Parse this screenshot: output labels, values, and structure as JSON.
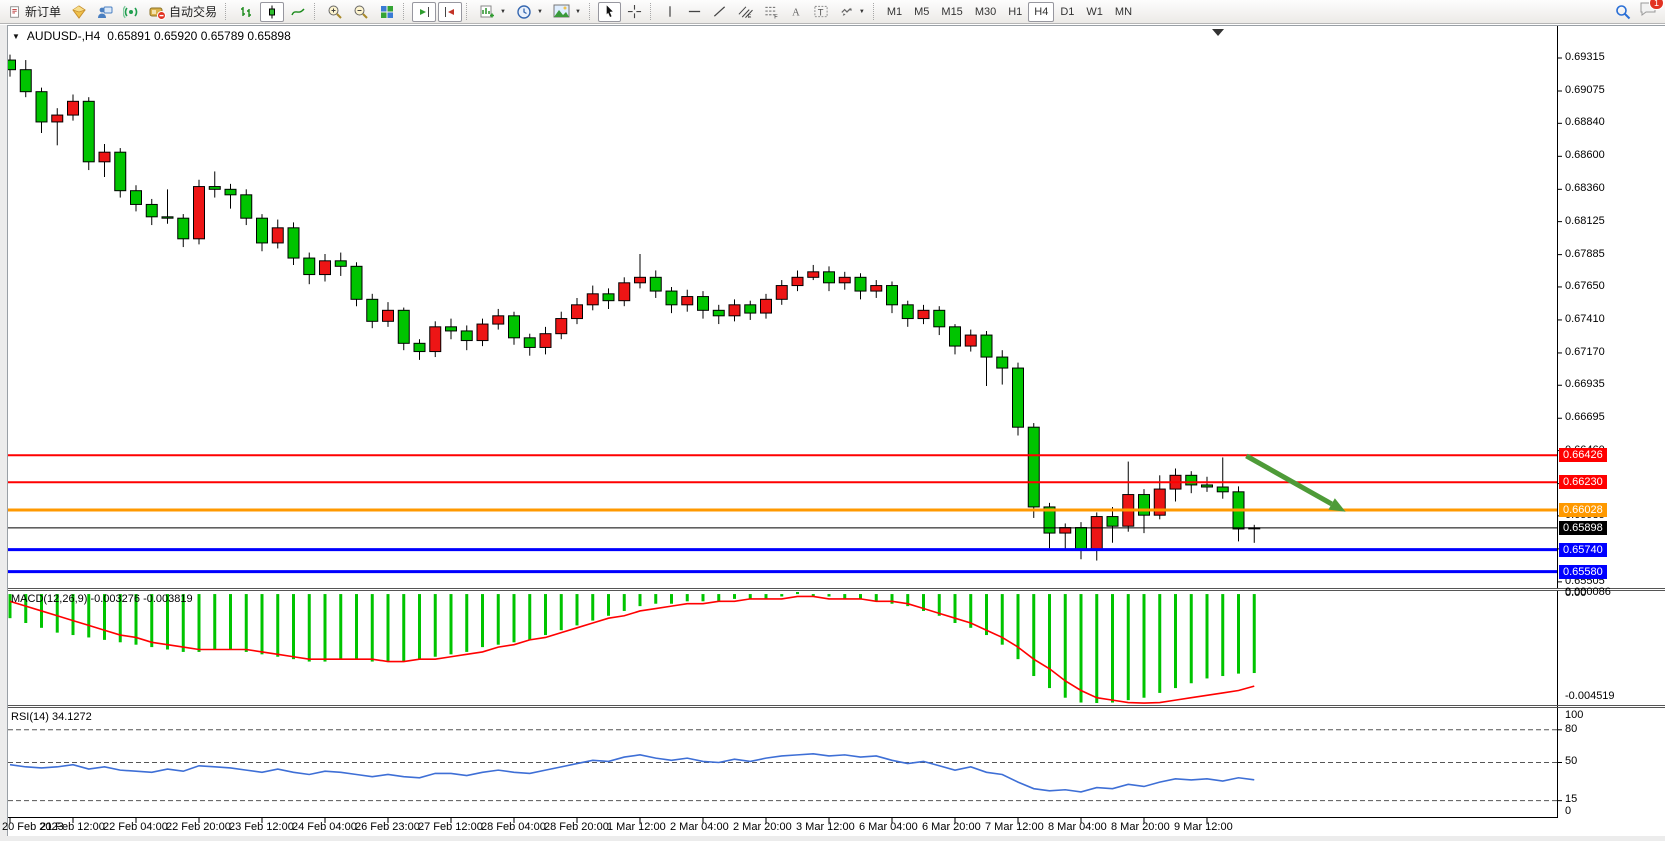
{
  "toolbar": {
    "new_order": "新订单",
    "auto_trading": "自动交易",
    "timeframes": [
      "M1",
      "M5",
      "M15",
      "M30",
      "H1",
      "H4",
      "D1",
      "W1",
      "MN"
    ],
    "active_timeframe": "H4",
    "notification_badge": "1"
  },
  "chart": {
    "symbol_title": "AUDUSD-,H4",
    "ohlc_text": "0.65891 0.65920 0.65789 0.65898",
    "macd_label": "MACD(12,26,9) -0.003276 -0.003819",
    "rsi_label": "RSI(14) 34.1272",
    "macd_scale_top": "0.000086",
    "macd_scale_top_overlap": "0.00",
    "macd_scale_bottom": "-0.004519",
    "rsi_scale": [
      "100",
      "80",
      "50",
      "15",
      "0"
    ]
  },
  "colors": {
    "up_candle": "#ED1515",
    "down_candle": "#00C400",
    "candle_border": "#000000",
    "line_red": "#FF0000",
    "line_orange": "#FF9900",
    "line_blue": "#0000FF",
    "price_line": "#000000",
    "macd_hist": "#00C400",
    "macd_signal": "#FF0000",
    "rsi_line": "#3E6FD6",
    "arrow_green": "#4E9B38",
    "axis_text": "#000000"
  },
  "chart_data": [
    {
      "type": "candlestick",
      "symbol": "AUDUSD-",
      "timeframe": "H4",
      "up_color_meaning": "red = bullish, green = bearish (CN scheme)",
      "ylim": [
        0.65468,
        0.6954
      ],
      "yticks": [
        0.69315,
        0.69075,
        0.6884,
        0.686,
        0.6836,
        0.68125,
        0.67885,
        0.6765,
        0.6741,
        0.6717,
        0.66935,
        0.66695,
        0.6646,
        0.6622,
        0.65985,
        0.65745,
        0.65505
      ],
      "x_labels": [
        "20 Feb 2023",
        "21 Feb 12:00",
        "22 Feb 04:00",
        "22 Feb 20:00",
        "23 Feb 12:00",
        "24 Feb 04:00",
        "26 Feb 23:00",
        "27 Feb 12:00",
        "28 Feb 04:00",
        "28 Feb 20:00",
        "1 Mar 12:00",
        "2 Mar 04:00",
        "2 Mar 20:00",
        "3 Mar 12:00",
        "6 Mar 04:00",
        "6 Mar 20:00",
        "7 Mar 12:00",
        "8 Mar 04:00",
        "8 Mar 20:00",
        "9 Mar 12:00"
      ],
      "bars_per_label": 4,
      "candles": [
        [
          0.693,
          0.6934,
          0.6918,
          0.6923
        ],
        [
          0.6923,
          0.693,
          0.6903,
          0.6907
        ],
        [
          0.6907,
          0.691,
          0.6877,
          0.6885
        ],
        [
          0.6885,
          0.6895,
          0.6868,
          0.689
        ],
        [
          0.689,
          0.6905,
          0.6886,
          0.69
        ],
        [
          0.69,
          0.6903,
          0.685,
          0.6856
        ],
        [
          0.6856,
          0.6869,
          0.6845,
          0.6863
        ],
        [
          0.6863,
          0.6866,
          0.683,
          0.6835
        ],
        [
          0.6835,
          0.6839,
          0.682,
          0.6825
        ],
        [
          0.6825,
          0.6829,
          0.681,
          0.6816
        ],
        [
          0.6816,
          0.6836,
          0.6811,
          0.6815
        ],
        [
          0.6815,
          0.6818,
          0.6794,
          0.68
        ],
        [
          0.68,
          0.6843,
          0.6796,
          0.6838
        ],
        [
          0.6838,
          0.6849,
          0.683,
          0.6836
        ],
        [
          0.6836,
          0.684,
          0.6822,
          0.6832
        ],
        [
          0.6832,
          0.6836,
          0.681,
          0.6815
        ],
        [
          0.6815,
          0.6818,
          0.6791,
          0.6797
        ],
        [
          0.6797,
          0.6814,
          0.6793,
          0.6808
        ],
        [
          0.6808,
          0.6812,
          0.6781,
          0.6786
        ],
        [
          0.6786,
          0.679,
          0.6767,
          0.6774
        ],
        [
          0.6774,
          0.6789,
          0.6769,
          0.6784
        ],
        [
          0.6784,
          0.679,
          0.6773,
          0.678
        ],
        [
          0.678,
          0.6783,
          0.6751,
          0.6756
        ],
        [
          0.6756,
          0.676,
          0.6735,
          0.674
        ],
        [
          0.674,
          0.6754,
          0.6736,
          0.6748
        ],
        [
          0.6748,
          0.675,
          0.6719,
          0.6724
        ],
        [
          0.6724,
          0.6727,
          0.6712,
          0.6718
        ],
        [
          0.6718,
          0.674,
          0.6714,
          0.6736
        ],
        [
          0.6736,
          0.6742,
          0.6727,
          0.6733
        ],
        [
          0.6733,
          0.6737,
          0.6719,
          0.6726
        ],
        [
          0.6726,
          0.6742,
          0.6722,
          0.6738
        ],
        [
          0.6738,
          0.6749,
          0.6734,
          0.6744
        ],
        [
          0.6744,
          0.6747,
          0.6723,
          0.6728
        ],
        [
          0.6728,
          0.6731,
          0.6715,
          0.6721
        ],
        [
          0.6721,
          0.6736,
          0.6716,
          0.6731
        ],
        [
          0.6731,
          0.6747,
          0.6727,
          0.6742
        ],
        [
          0.6742,
          0.6757,
          0.6738,
          0.6752
        ],
        [
          0.6752,
          0.6766,
          0.6748,
          0.676
        ],
        [
          0.676,
          0.6764,
          0.6749,
          0.6755
        ],
        [
          0.6755,
          0.6772,
          0.6751,
          0.6768
        ],
        [
          0.6768,
          0.6789,
          0.6764,
          0.6772
        ],
        [
          0.6772,
          0.6777,
          0.6757,
          0.6762
        ],
        [
          0.6762,
          0.6765,
          0.6746,
          0.6752
        ],
        [
          0.6752,
          0.6763,
          0.6747,
          0.6758
        ],
        [
          0.6758,
          0.6762,
          0.6742,
          0.6748
        ],
        [
          0.6748,
          0.6752,
          0.6738,
          0.6744
        ],
        [
          0.6744,
          0.6756,
          0.674,
          0.6752
        ],
        [
          0.6752,
          0.6755,
          0.6741,
          0.6746
        ],
        [
          0.6746,
          0.676,
          0.6742,
          0.6756
        ],
        [
          0.6756,
          0.677,
          0.6752,
          0.6766
        ],
        [
          0.6766,
          0.6777,
          0.6762,
          0.6772
        ],
        [
          0.6772,
          0.6781,
          0.677,
          0.6776
        ],
        [
          0.6776,
          0.678,
          0.6762,
          0.6768
        ],
        [
          0.6768,
          0.6776,
          0.6763,
          0.6772
        ],
        [
          0.6772,
          0.6775,
          0.6756,
          0.6762
        ],
        [
          0.6762,
          0.677,
          0.6757,
          0.6766
        ],
        [
          0.6766,
          0.6769,
          0.6746,
          0.6752
        ],
        [
          0.6752,
          0.6755,
          0.6736,
          0.6742
        ],
        [
          0.6742,
          0.6752,
          0.6738,
          0.6748
        ],
        [
          0.6748,
          0.6751,
          0.673,
          0.6736
        ],
        [
          0.6736,
          0.6738,
          0.6716,
          0.6722
        ],
        [
          0.6722,
          0.6734,
          0.6718,
          0.673
        ],
        [
          0.673,
          0.6733,
          0.6693,
          0.6714
        ],
        [
          0.6714,
          0.6719,
          0.6694,
          0.6706
        ],
        [
          0.6706,
          0.671,
          0.6657,
          0.6663
        ],
        [
          0.6663,
          0.6666,
          0.6597,
          0.6605
        ],
        [
          0.6605,
          0.6608,
          0.6575,
          0.6586
        ],
        [
          0.6586,
          0.6593,
          0.6573,
          0.659
        ],
        [
          0.659,
          0.6594,
          0.6567,
          0.6574
        ],
        [
          0.6574,
          0.6601,
          0.6566,
          0.6598
        ],
        [
          0.6598,
          0.6605,
          0.6579,
          0.6591
        ],
        [
          0.6591,
          0.6638,
          0.6587,
          0.6614
        ],
        [
          0.6614,
          0.6618,
          0.6586,
          0.6599
        ],
        [
          0.6599,
          0.6628,
          0.6596,
          0.6618
        ],
        [
          0.6618,
          0.6633,
          0.6609,
          0.6628
        ],
        [
          0.6628,
          0.6631,
          0.6615,
          0.6621
        ],
        [
          0.6621,
          0.6627,
          0.6616,
          0.66195
        ],
        [
          0.66195,
          0.6641,
          0.6611,
          0.6616
        ],
        [
          0.6616,
          0.662,
          0.658,
          0.6589
        ],
        [
          0.65891,
          0.6592,
          0.65789,
          0.65898
        ]
      ],
      "hlines": [
        {
          "price": 0.66426,
          "color": "#FF0000",
          "label": "0.66426",
          "width": 2
        },
        {
          "price": 0.6623,
          "color": "#FF0000",
          "label": "0.66230",
          "width": 2
        },
        {
          "price": 0.66028,
          "color": "#FF9900",
          "label": "0.66028",
          "width": 3
        },
        {
          "price": 0.65898,
          "color": "#000000",
          "label": "0.65898",
          "width": 1
        },
        {
          "price": 0.6574,
          "color": "#0000FF",
          "label": "0.65740",
          "width": 3
        },
        {
          "price": 0.6558,
          "color": "#0000FF",
          "label": "0.65580",
          "width": 3
        }
      ],
      "annotations": [
        {
          "type": "arrow",
          "from_bar": 78.5,
          "from_price": 0.66421,
          "to_bar": 84.8,
          "to_price": 0.66015,
          "color": "#4E9B38"
        },
        {
          "type": "chart-shift-marker",
          "bar": 76.7
        }
      ]
    },
    {
      "type": "bar",
      "name": "MACD(12,26,9)",
      "current_main": -0.003276,
      "current_signal": -0.003819,
      "ylim": [
        -0.004519,
        8.6e-05
      ],
      "hist": [
        -0.001,
        -0.0012,
        -0.0014,
        -0.0016,
        -0.0017,
        -0.0018,
        -0.0019,
        -0.002,
        -0.0021,
        -0.0022,
        -0.0023,
        -0.0024,
        -0.0024,
        -0.0023,
        -0.0023,
        -0.0024,
        -0.0025,
        -0.0026,
        -0.0027,
        -0.0028,
        -0.0028,
        -0.0027,
        -0.0027,
        -0.0028,
        -0.0028,
        -0.0028,
        -0.0027,
        -0.0026,
        -0.0025,
        -0.0024,
        -0.0022,
        -0.0021,
        -0.002,
        -0.0019,
        -0.0017,
        -0.0015,
        -0.0013,
        -0.0011,
        -0.0009,
        -0.0007,
        -0.0005,
        -0.0004,
        -0.0004,
        -0.0003,
        -0.0003,
        -0.0003,
        -0.0002,
        -0.0002,
        -0.0002,
        -0.0001,
        8.6e-05,
        -0.0001,
        -0.0001,
        -0.0002,
        -0.0002,
        -0.0003,
        -0.0004,
        -0.0005,
        -0.0007,
        -0.0009,
        -0.0012,
        -0.0014,
        -0.0017,
        -0.0021,
        -0.0027,
        -0.0034,
        -0.0039,
        -0.0043,
        -0.0045,
        -0.004519,
        -0.0045,
        -0.0044,
        -0.0043,
        -0.0041,
        -0.0039,
        -0.0037,
        -0.0035,
        -0.0034,
        -0.0033,
        -0.003276
      ],
      "signal": [
        -0.0003,
        -0.0005,
        -0.0007,
        -0.0009,
        -0.0011,
        -0.0013,
        -0.0015,
        -0.0017,
        -0.0018,
        -0.002,
        -0.0021,
        -0.0022,
        -0.0023,
        -0.0023,
        -0.0023,
        -0.0023,
        -0.0024,
        -0.0025,
        -0.0026,
        -0.0027,
        -0.0027,
        -0.0027,
        -0.0027,
        -0.0027,
        -0.0028,
        -0.0028,
        -0.0027,
        -0.0027,
        -0.0026,
        -0.0025,
        -0.0024,
        -0.0022,
        -0.0021,
        -0.0019,
        -0.0018,
        -0.0016,
        -0.0014,
        -0.0012,
        -0.001,
        -0.0009,
        -0.0007,
        -0.0006,
        -0.0005,
        -0.0004,
        -0.0004,
        -0.0003,
        -0.0003,
        -0.0002,
        -0.0002,
        -0.0002,
        -0.0001,
        -0.0001,
        -0.0002,
        -0.0002,
        -0.0002,
        -0.0003,
        -0.0003,
        -0.0004,
        -0.0006,
        -0.0008,
        -0.001,
        -0.0012,
        -0.0015,
        -0.0018,
        -0.0022,
        -0.0027,
        -0.0031,
        -0.0036,
        -0.004,
        -0.0043,
        -0.0044,
        -0.0045,
        -0.00452,
        -0.0045,
        -0.0044,
        -0.0043,
        -0.0042,
        -0.0041,
        -0.004,
        -0.003819
      ]
    },
    {
      "type": "line",
      "name": "RSI(14)",
      "current": 34.1272,
      "ylim": [
        0,
        100
      ],
      "levels": [
        80,
        50,
        15
      ],
      "values": [
        48,
        46,
        45,
        46,
        48,
        44,
        46,
        43,
        42,
        41,
        44,
        42,
        47,
        46,
        45,
        43,
        41,
        44,
        41,
        39,
        42,
        41,
        39,
        37,
        39,
        37,
        36,
        40,
        40,
        38,
        41,
        43,
        41,
        40,
        43,
        46,
        49,
        52,
        51,
        55,
        57,
        54,
        52,
        54,
        51,
        50,
        53,
        51,
        54,
        56,
        57,
        58,
        56,
        57,
        55,
        56,
        52,
        49,
        51,
        47,
        43,
        46,
        41,
        39,
        32,
        26,
        24,
        25,
        23,
        27,
        26,
        30,
        28,
        32,
        35,
        34,
        35,
        33,
        36,
        34.13
      ]
    }
  ]
}
